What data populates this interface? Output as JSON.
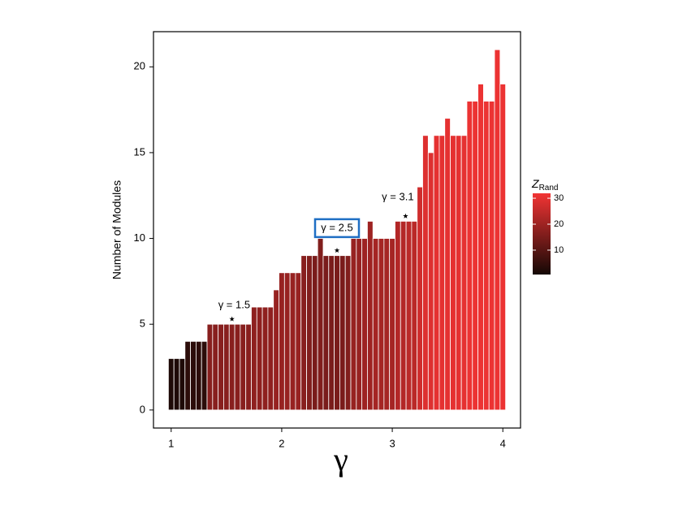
{
  "chart_data": {
    "type": "bar",
    "x": [
      1.0,
      1.05,
      1.1,
      1.15,
      1.2,
      1.25,
      1.3,
      1.35,
      1.4,
      1.45,
      1.5,
      1.55,
      1.6,
      1.65,
      1.7,
      1.75,
      1.8,
      1.85,
      1.9,
      1.95,
      2.0,
      2.05,
      2.1,
      2.15,
      2.2,
      2.25,
      2.3,
      2.35,
      2.4,
      2.45,
      2.5,
      2.55,
      2.6,
      2.65,
      2.7,
      2.75,
      2.8,
      2.85,
      2.9,
      2.95,
      3.0,
      3.05,
      3.1,
      3.15,
      3.2,
      3.25,
      3.3,
      3.35,
      3.4,
      3.45,
      3.5,
      3.55,
      3.6,
      3.65,
      3.7,
      3.75,
      3.8,
      3.85,
      3.9,
      3.95,
      4.0
    ],
    "values": [
      3,
      3,
      3,
      4,
      4,
      4,
      4,
      5,
      5,
      5,
      5,
      5,
      5,
      5,
      5,
      6,
      6,
      6,
      6,
      7,
      8,
      8,
      8,
      8,
      9,
      9,
      9,
      10,
      9,
      9,
      9,
      9,
      9,
      10,
      10,
      10,
      11,
      10,
      10,
      10,
      10,
      11,
      11,
      11,
      11,
      13,
      16,
      15,
      16,
      16,
      17,
      16,
      16,
      16,
      18,
      18,
      19,
      18,
      18,
      21,
      19
    ],
    "color_values": [
      2,
      2,
      2,
      4,
      4,
      4,
      4,
      17,
      17,
      17,
      17,
      17,
      17,
      17,
      17,
      18,
      18,
      18,
      18,
      19,
      19,
      19,
      19,
      19,
      17,
      16,
      15,
      16,
      15,
      15,
      15,
      15,
      16,
      19,
      19,
      20,
      20,
      21,
      21,
      21,
      21,
      23,
      23,
      24,
      24,
      27,
      29,
      29,
      30,
      30,
      30,
      30,
      30,
      30,
      31,
      31,
      31,
      31,
      31,
      31,
      31
    ],
    "colormap": [
      "#140805",
      "#f23434"
    ],
    "xlabel": "γ",
    "ylabel": "Number of Modules",
    "xlim": [
      0.84,
      4.16
    ],
    "xticks": [
      1,
      2,
      3,
      4
    ],
    "ylim": [
      -1.05,
      22.05
    ],
    "yticks": [
      0,
      5,
      10,
      15,
      20
    ],
    "colorbar_title": "Z",
    "colorbar_subtitle": "Rand",
    "colorbar_lim": [
      0.6,
      31.9
    ],
    "colorbar_ticks": [
      10,
      20,
      30
    ],
    "annotations": [
      {
        "text": "γ = 1.5",
        "x": 1.57,
        "y": 6.1,
        "marker_x": 1.55,
        "marker_y": 5.3,
        "boxed": false
      },
      {
        "text": "γ = 2.5",
        "x": 2.5,
        "y": 10.6,
        "marker_x": 2.5,
        "marker_y": 9.3,
        "boxed": true
      },
      {
        "text": "γ = 3.1",
        "x": 3.05,
        "y": 12.4,
        "marker_x": 3.12,
        "marker_y": 11.3,
        "boxed": false
      }
    ]
  }
}
